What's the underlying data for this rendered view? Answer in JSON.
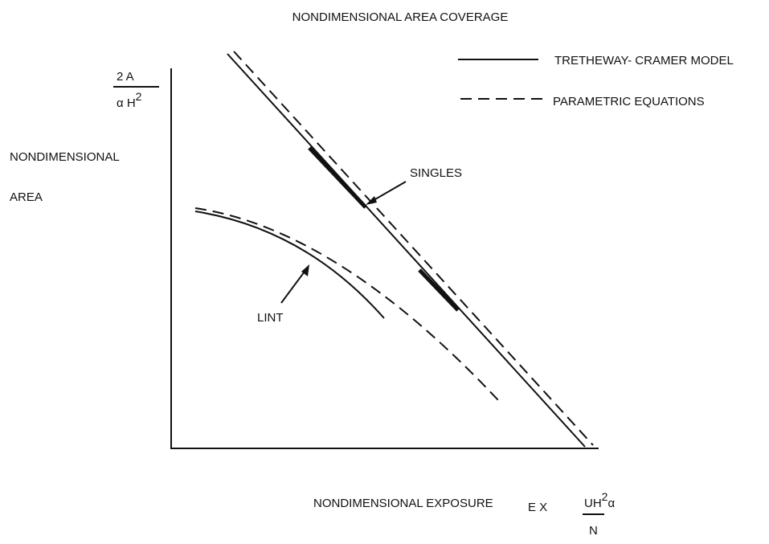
{
  "title": "NONDIMENSIONAL AREA COVERAGE",
  "legend": {
    "solid": "TRETHEWAY- CRAMER MODEL",
    "dashed": "PARAMETRIC EQUATIONS"
  },
  "y_axis": {
    "label_line1": "NONDIMENSIONAL",
    "label_line2": "AREA",
    "formula_numerator": "2 A",
    "formula_denominator": "α H",
    "formula_exponent": "2"
  },
  "x_axis": {
    "label": "NONDIMENSIONAL EXPOSURE",
    "formula_prefix": "E X",
    "formula_numerator": "UH",
    "formula_exponent": "2",
    "formula_alpha": "α",
    "formula_denominator": "N"
  },
  "annotations": {
    "singles": "SINGLES",
    "lint": "LINT"
  }
}
